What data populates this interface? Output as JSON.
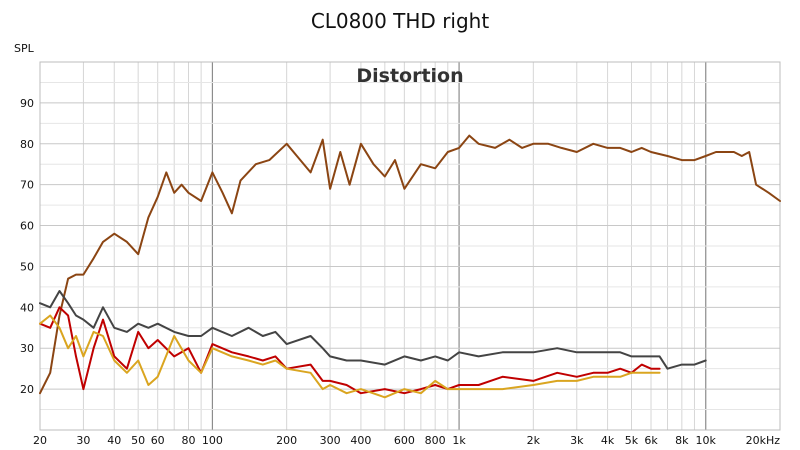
{
  "chart_data": {
    "type": "line",
    "title": "CL0800 THD right",
    "subtitle": "Distortion",
    "ylabel": "SPL",
    "xlabel": "",
    "x_scale": "log",
    "xlim": [
      20,
      20000
    ],
    "ylim": [
      10,
      100
    ],
    "grid": true,
    "x_tick_values": [
      20,
      30,
      40,
      50,
      60,
      80,
      100,
      200,
      300,
      400,
      600,
      800,
      1000,
      2000,
      3000,
      4000,
      5000,
      6000,
      8000,
      10000,
      20000
    ],
    "x_tick_labels": [
      "20",
      "30",
      "40",
      "50",
      "60",
      "80",
      "100",
      "200",
      "300",
      "400",
      "600",
      "800",
      "1k",
      "2k",
      "3k",
      "4k",
      "5k",
      "6k",
      "8k",
      "10k",
      "20kHz"
    ],
    "y_tick_values": [
      20,
      30,
      40,
      50,
      60,
      70,
      80,
      90
    ],
    "y_tick_labels": [
      "20",
      "30",
      "40",
      "50",
      "60",
      "70",
      "80",
      "90"
    ],
    "series": [
      {
        "color": "#8B4513",
        "x": [
          20,
          22,
          24,
          26,
          28,
          30,
          33,
          36,
          40,
          45,
          50,
          55,
          60,
          65,
          70,
          75,
          80,
          90,
          100,
          110,
          120,
          130,
          150,
          170,
          200,
          220,
          250,
          280,
          300,
          330,
          360,
          400,
          450,
          500,
          550,
          600,
          700,
          800,
          900,
          1000,
          1100,
          1200,
          1400,
          1600,
          1800,
          2000,
          2300,
          2600,
          3000,
          3500,
          4000,
          4500,
          5000,
          5500,
          6000,
          7000,
          8000,
          9000,
          10000,
          11000,
          12000,
          13000,
          14000,
          15000,
          16000,
          18000,
          20000
        ],
        "y": [
          19,
          24,
          38,
          47,
          48,
          48,
          52,
          56,
          58,
          56,
          53,
          62,
          67,
          73,
          68,
          70,
          68,
          66,
          73,
          68,
          63,
          71,
          75,
          76,
          80,
          77,
          73,
          81,
          69,
          78,
          70,
          80,
          75,
          72,
          76,
          69,
          75,
          74,
          78,
          79,
          82,
          80,
          79,
          81,
          79,
          80,
          80,
          79,
          78,
          80,
          79,
          79,
          78,
          79,
          78,
          77,
          76,
          76,
          77,
          78,
          78,
          78,
          77,
          78,
          70,
          68,
          66
        ]
      },
      {
        "color": "#444444",
        "x": [
          20,
          22,
          24,
          26,
          28,
          30,
          33,
          36,
          40,
          45,
          50,
          55,
          60,
          70,
          80,
          90,
          100,
          120,
          140,
          160,
          180,
          200,
          250,
          280,
          300,
          350,
          400,
          500,
          600,
          700,
          800,
          900,
          1000,
          1200,
          1500,
          2000,
          2500,
          3000,
          3500,
          4000,
          4500,
          5000,
          5500,
          6000,
          6500,
          7000,
          8000,
          9000,
          10000
        ],
        "y": [
          41,
          40,
          44,
          41,
          38,
          37,
          35,
          40,
          35,
          34,
          36,
          35,
          36,
          34,
          33,
          33,
          35,
          33,
          35,
          33,
          34,
          31,
          33,
          30,
          28,
          27,
          27,
          26,
          28,
          27,
          28,
          27,
          29,
          28,
          29,
          29,
          30,
          29,
          29,
          29,
          29,
          28,
          28,
          28,
          28,
          25,
          26,
          26,
          27
        ]
      },
      {
        "color": "#C00000",
        "x": [
          20,
          22,
          24,
          26,
          28,
          30,
          33,
          36,
          40,
          45,
          50,
          55,
          60,
          70,
          80,
          90,
          100,
          120,
          140,
          160,
          180,
          200,
          250,
          280,
          300,
          350,
          400,
          500,
          600,
          700,
          800,
          900,
          1000,
          1200,
          1500,
          2000,
          2500,
          3000,
          3500,
          4000,
          4500,
          5000,
          5500,
          6000,
          6500
        ],
        "y": [
          36,
          35,
          40,
          38,
          28,
          20,
          30,
          37,
          28,
          25,
          34,
          30,
          32,
          28,
          30,
          24,
          31,
          29,
          28,
          27,
          28,
          25,
          26,
          22,
          22,
          21,
          19,
          20,
          19,
          20,
          21,
          20,
          21,
          21,
          23,
          22,
          24,
          23,
          24,
          24,
          25,
          24,
          26,
          25,
          25
        ]
      },
      {
        "color": "#DAA520",
        "x": [
          20,
          22,
          24,
          26,
          28,
          30,
          33,
          36,
          40,
          45,
          50,
          55,
          60,
          70,
          80,
          90,
          100,
          120,
          140,
          160,
          180,
          200,
          250,
          280,
          300,
          350,
          400,
          500,
          600,
          700,
          800,
          900,
          1000,
          1200,
          1500,
          2000,
          2500,
          3000,
          3500,
          4000,
          4500,
          5000,
          5500,
          6000,
          6500
        ],
        "y": [
          36,
          38,
          35,
          30,
          33,
          28,
          34,
          33,
          27,
          24,
          27,
          21,
          23,
          33,
          27,
          24,
          30,
          28,
          27,
          26,
          27,
          25,
          24,
          20,
          21,
          19,
          20,
          18,
          20,
          19,
          22,
          20,
          20,
          20,
          20,
          21,
          22,
          22,
          23,
          23,
          23,
          24,
          24,
          24,
          24
        ]
      }
    ]
  }
}
